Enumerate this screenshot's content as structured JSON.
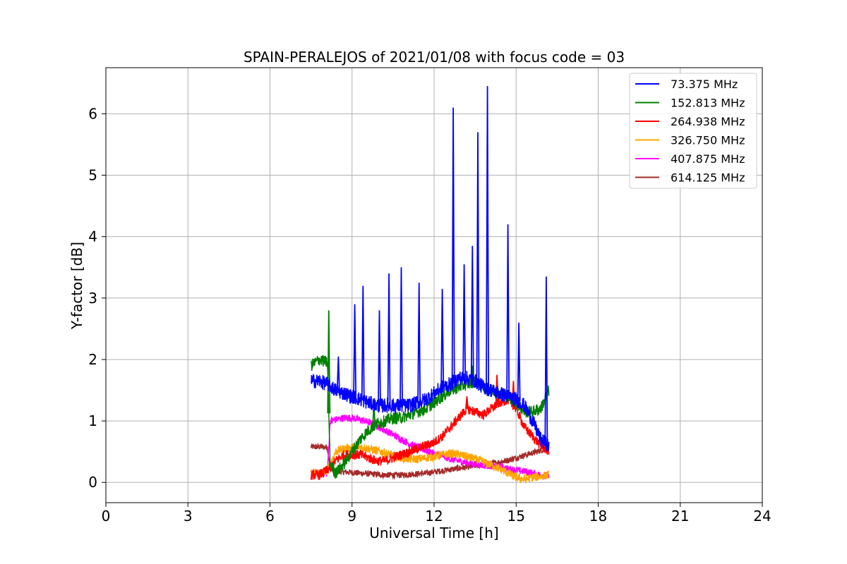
{
  "chart_data": {
    "type": "line",
    "title": "SPAIN-PERALEJOS of 2021/01/08 with focus code = 03",
    "xlabel": "Universal Time [h]",
    "ylabel": "Y-factor [dB]",
    "xlim": [
      0,
      24
    ],
    "ylim": [
      -0.33,
      6.75
    ],
    "xticks": [
      0,
      3,
      6,
      9,
      12,
      15,
      18,
      21,
      24
    ],
    "yticks": [
      0,
      1,
      2,
      3,
      4,
      5,
      6
    ],
    "grid": true,
    "legend_position": "top-right",
    "series": [
      {
        "name": " 73.375 MHz",
        "color": "#0000ff",
        "x": [
          7.5,
          7.8,
          8.1,
          8.4,
          8.7,
          9.0,
          9.3,
          9.6,
          9.9,
          10.2,
          10.5,
          10.8,
          11.1,
          11.4,
          11.7,
          12.0,
          12.3,
          12.6,
          12.9,
          13.2,
          13.5,
          13.8,
          14.1,
          14.4,
          14.7,
          15.0,
          15.3,
          15.6,
          15.9,
          16.2
        ],
        "y": [
          1.65,
          1.65,
          1.6,
          1.5,
          1.45,
          1.4,
          1.35,
          1.3,
          1.25,
          1.25,
          1.25,
          1.25,
          1.25,
          1.3,
          1.35,
          1.45,
          1.55,
          1.6,
          1.7,
          1.7,
          1.65,
          1.55,
          1.5,
          1.45,
          1.4,
          1.35,
          1.25,
          1.0,
          0.7,
          0.6
        ],
        "peaks": [
          [
            8.5,
            2.05
          ],
          [
            9.1,
            2.9
          ],
          [
            9.4,
            3.2
          ],
          [
            10.0,
            2.8
          ],
          [
            10.35,
            3.4
          ],
          [
            10.8,
            3.5
          ],
          [
            11.45,
            3.25
          ],
          [
            12.3,
            3.15
          ],
          [
            12.7,
            6.1
          ],
          [
            13.1,
            3.55
          ],
          [
            13.4,
            3.85
          ],
          [
            13.6,
            5.7
          ],
          [
            13.95,
            6.45
          ],
          [
            14.7,
            4.2
          ],
          [
            15.1,
            2.6
          ],
          [
            16.1,
            3.35
          ]
        ]
      },
      {
        "name": "152.813 MHz",
        "color": "#008000",
        "x": [
          7.5,
          7.8,
          8.1,
          8.2,
          8.4,
          8.7,
          9.0,
          9.3,
          9.6,
          9.9,
          10.2,
          10.5,
          10.8,
          11.1,
          11.4,
          11.7,
          12.0,
          12.3,
          12.6,
          12.9,
          13.2,
          13.5,
          13.8,
          14.1,
          14.4,
          14.7,
          15.0,
          15.3,
          15.6,
          15.9,
          16.2
        ],
        "y": [
          1.9,
          2.0,
          1.95,
          0.3,
          0.15,
          0.3,
          0.5,
          0.7,
          0.85,
          0.95,
          1.0,
          1.05,
          1.05,
          1.1,
          1.15,
          1.2,
          1.3,
          1.4,
          1.5,
          1.55,
          1.6,
          1.65,
          1.55,
          1.5,
          1.45,
          1.4,
          1.3,
          1.15,
          1.15,
          1.2,
          1.5
        ],
        "peaks": [
          [
            8.15,
            2.8
          ],
          [
            9.8,
            1.3
          ],
          [
            13.4,
            1.9
          ]
        ]
      },
      {
        "name": "264.938 MHz",
        "color": "#ff0000",
        "x": [
          7.5,
          7.8,
          8.1,
          8.4,
          8.7,
          9.0,
          9.3,
          9.6,
          9.9,
          10.2,
          10.5,
          10.8,
          11.1,
          11.4,
          11.7,
          12.0,
          12.3,
          12.6,
          12.9,
          13.2,
          13.5,
          13.8,
          14.1,
          14.4,
          14.7,
          15.0,
          15.3,
          15.6,
          15.9,
          16.2
        ],
        "y": [
          0.12,
          0.12,
          0.2,
          0.35,
          0.45,
          0.45,
          0.45,
          0.4,
          0.35,
          0.35,
          0.4,
          0.45,
          0.5,
          0.55,
          0.6,
          0.65,
          0.75,
          0.9,
          1.05,
          1.2,
          1.15,
          1.1,
          1.2,
          1.3,
          1.35,
          1.2,
          0.9,
          0.75,
          0.6,
          0.5
        ],
        "peaks": [
          [
            13.2,
            1.4
          ],
          [
            14.3,
            1.75
          ],
          [
            14.9,
            1.65
          ]
        ]
      },
      {
        "name": "326.750 MHz",
        "color": "#ffa500",
        "x": [
          7.5,
          7.8,
          8.1,
          8.4,
          8.7,
          9.0,
          9.3,
          9.6,
          9.9,
          10.2,
          10.5,
          10.8,
          11.1,
          11.4,
          11.7,
          12.0,
          12.3,
          12.6,
          12.9,
          13.2,
          13.5,
          13.8,
          14.1,
          14.4,
          14.7,
          15.0,
          15.3,
          15.6,
          15.9,
          16.2
        ],
        "y": [
          0.15,
          0.15,
          0.2,
          0.5,
          0.55,
          0.57,
          0.58,
          0.55,
          0.52,
          0.48,
          0.44,
          0.4,
          0.38,
          0.38,
          0.4,
          0.42,
          0.45,
          0.47,
          0.45,
          0.42,
          0.38,
          0.33,
          0.28,
          0.22,
          0.15,
          0.08,
          0.05,
          0.08,
          0.1,
          0.12
        ]
      },
      {
        "name": "407.875 MHz",
        "color": "#ff00ff",
        "x": [
          7.5,
          7.8,
          8.1,
          8.2,
          8.4,
          8.7,
          9.0,
          9.3,
          9.6,
          9.9,
          10.2,
          10.5,
          10.8,
          11.1,
          11.4,
          11.7,
          12.0,
          12.3,
          12.6,
          12.9,
          13.2,
          13.5,
          13.8,
          14.1,
          14.4,
          14.7,
          15.0,
          15.3,
          15.6,
          15.9,
          16.2
        ],
        "y": [
          0.15,
          0.15,
          0.15,
          1.0,
          1.02,
          1.05,
          1.05,
          1.02,
          0.98,
          0.92,
          0.85,
          0.78,
          0.7,
          0.63,
          0.57,
          0.52,
          0.47,
          0.43,
          0.38,
          0.35,
          0.32,
          0.3,
          0.28,
          0.27,
          0.25,
          0.22,
          0.2,
          0.18,
          0.15,
          0.12,
          0.1
        ]
      },
      {
        "name": "614.125 MHz",
        "color": "#a52a2a",
        "x": [
          7.5,
          7.8,
          8.1,
          8.2,
          8.4,
          8.7,
          9.0,
          9.3,
          9.6,
          9.9,
          10.2,
          10.5,
          10.8,
          11.1,
          11.4,
          11.7,
          12.0,
          12.3,
          12.6,
          12.9,
          13.2,
          13.5,
          13.8,
          14.1,
          14.4,
          14.7,
          15.0,
          15.3,
          15.6,
          15.9,
          16.2
        ],
        "y": [
          0.58,
          0.58,
          0.57,
          0.22,
          0.18,
          0.17,
          0.16,
          0.15,
          0.14,
          0.13,
          0.12,
          0.12,
          0.12,
          0.13,
          0.14,
          0.15,
          0.17,
          0.19,
          0.21,
          0.23,
          0.25,
          0.27,
          0.29,
          0.31,
          0.33,
          0.36,
          0.4,
          0.44,
          0.48,
          0.52,
          0.56
        ]
      }
    ]
  }
}
